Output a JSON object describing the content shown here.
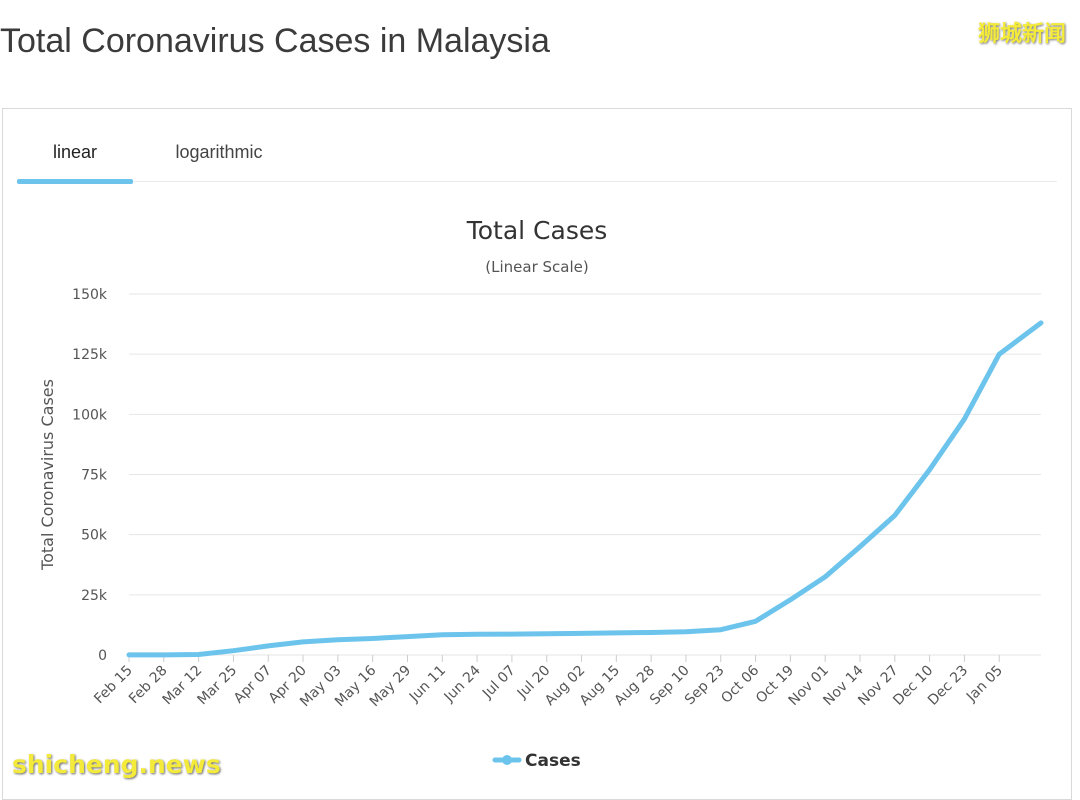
{
  "page": {
    "title": "Total Coronavirus Cases in Malaysia",
    "watermark_top": "狮城新闻",
    "watermark_bottom": "shicheng.news"
  },
  "tabs": [
    {
      "label": "linear",
      "active": true
    },
    {
      "label": "logarithmic",
      "active": false
    }
  ],
  "colors": {
    "series": "#6cc4ec",
    "accent": "#6cc4ec",
    "grid": "#e6e6e6"
  },
  "chart_data": {
    "type": "line",
    "title": "Total Cases",
    "subtitle": "(Linear Scale)",
    "ylabel": "Total Coronavirus Cases",
    "xlabel": "",
    "ylim": [
      0,
      150000
    ],
    "yticks": [
      {
        "value": 0,
        "label": "0"
      },
      {
        "value": 25000,
        "label": "25k"
      },
      {
        "value": 50000,
        "label": "50k"
      },
      {
        "value": 75000,
        "label": "75k"
      },
      {
        "value": 100000,
        "label": "100k"
      },
      {
        "value": 125000,
        "label": "125k"
      },
      {
        "value": 150000,
        "label": "150k"
      }
    ],
    "xticks": [
      "Feb 15",
      "Feb 28",
      "Mar 12",
      "Mar 25",
      "Apr 07",
      "Apr 20",
      "May 03",
      "May 16",
      "May 29",
      "Jun 11",
      "Jun 24",
      "Jul 07",
      "Jul 20",
      "Aug 02",
      "Aug 15",
      "Aug 28",
      "Sep 10",
      "Sep 23",
      "Oct 06",
      "Oct 19",
      "Nov 01",
      "Nov 14",
      "Nov 27",
      "Dec 10",
      "Dec 23",
      "Jan 05"
    ],
    "grid": true,
    "legend": {
      "position": "bottom-center"
    },
    "series": [
      {
        "name": "Cases",
        "points": [
          [
            "Feb 15",
            22
          ],
          [
            "Feb 28",
            25
          ],
          [
            "Mar 12",
            197
          ],
          [
            "Mar 25",
            1796
          ],
          [
            "Apr 07",
            3793
          ],
          [
            "Apr 20",
            5425
          ],
          [
            "May 03",
            6298
          ],
          [
            "May 16",
            6872
          ],
          [
            "May 29",
            7629
          ],
          [
            "Jun 11",
            8402
          ],
          [
            "Jun 24",
            8606
          ],
          [
            "Jul 07",
            8677
          ],
          [
            "Jul 20",
            8800
          ],
          [
            "Aug 02",
            8976
          ],
          [
            "Aug 15",
            9175
          ],
          [
            "Aug 28",
            9340
          ],
          [
            "Sep 10",
            9700
          ],
          [
            "Sep 23",
            10500
          ],
          [
            "Oct 06",
            14000
          ],
          [
            "Oct 19",
            22957
          ],
          [
            "Nov 01",
            32505
          ],
          [
            "Nov 14",
            45000
          ],
          [
            "Nov 27",
            58000
          ],
          [
            "Dec 10",
            77000
          ],
          [
            "Dec 23",
            98000
          ],
          [
            "Jan 05",
            125000
          ],
          [
            "Jan 11",
            138000
          ]
        ]
      }
    ]
  }
}
